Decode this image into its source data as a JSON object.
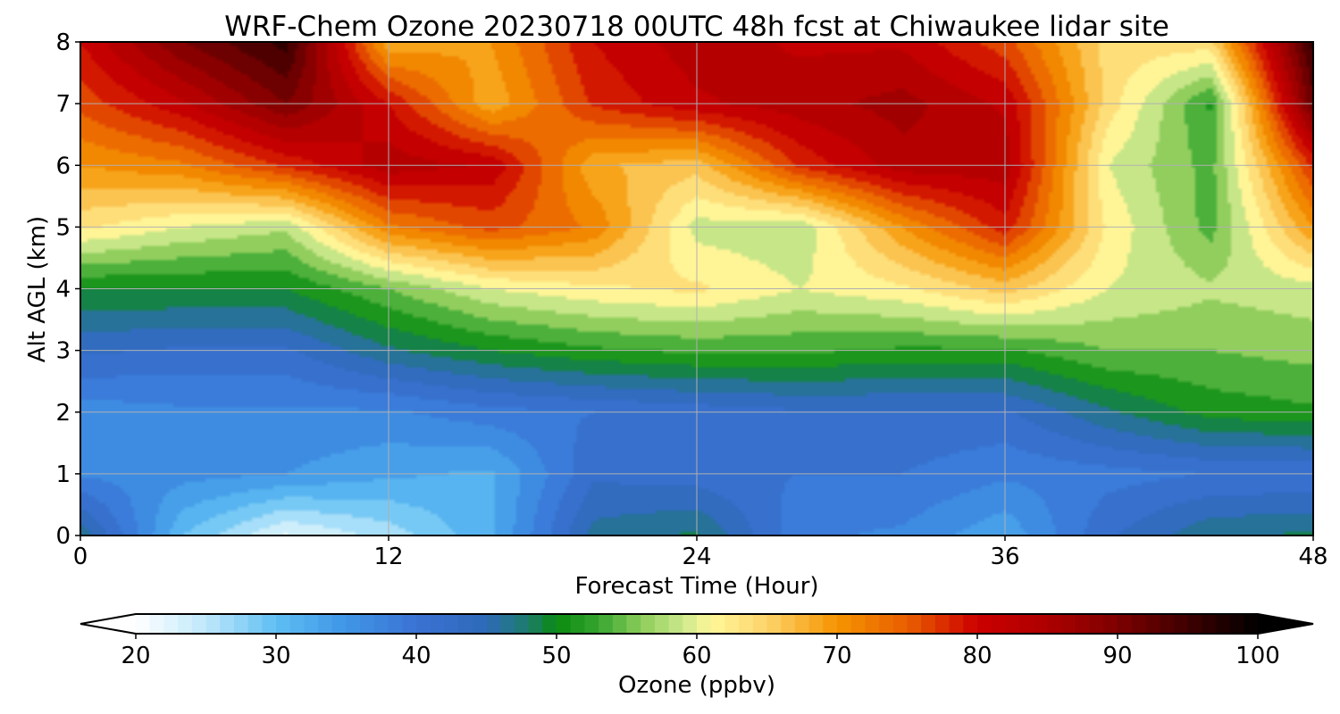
{
  "chart_data": {
    "type": "heatmap",
    "title": "WRF-Chem Ozone  20230718 00UTC 48h fcst at Chiwaukee lidar site",
    "xlabel": "Forecast Time (Hour)",
    "ylabel": "Alt AGL (km)",
    "xlim": [
      0,
      48
    ],
    "ylim": [
      0,
      8
    ],
    "xticks": [
      0,
      12,
      24,
      36,
      48
    ],
    "yticks": [
      0,
      1,
      2,
      3,
      4,
      5,
      6,
      7,
      8
    ],
    "grid": true,
    "colorbar": {
      "label": "Ozone  (ppbv)",
      "range": [
        20,
        100
      ],
      "ticks": [
        20,
        30,
        40,
        50,
        60,
        70,
        80,
        90,
        100
      ],
      "extend": "both",
      "orientation": "horizontal",
      "stops": [
        {
          "value": 20,
          "color": "#ffffff"
        },
        {
          "value": 25,
          "color": "#bfe8fb"
        },
        {
          "value": 30,
          "color": "#5fbef3"
        },
        {
          "value": 35,
          "color": "#3f95e6"
        },
        {
          "value": 40,
          "color": "#3a72d4"
        },
        {
          "value": 45,
          "color": "#2e6ab8"
        },
        {
          "value": 48,
          "color": "#1c7d6a"
        },
        {
          "value": 50,
          "color": "#0a8a10"
        },
        {
          "value": 53,
          "color": "#36a630"
        },
        {
          "value": 56,
          "color": "#8ccc5a"
        },
        {
          "value": 59,
          "color": "#cce88c"
        },
        {
          "value": 61,
          "color": "#fff79a"
        },
        {
          "value": 65,
          "color": "#fdd36a"
        },
        {
          "value": 70,
          "color": "#f59400"
        },
        {
          "value": 75,
          "color": "#e95e00"
        },
        {
          "value": 80,
          "color": "#cc0000"
        },
        {
          "value": 85,
          "color": "#ad0000"
        },
        {
          "value": 90,
          "color": "#7d0000"
        },
        {
          "value": 95,
          "color": "#3e0000"
        },
        {
          "value": 100,
          "color": "#000000"
        }
      ]
    },
    "times_h": [
      0,
      4,
      8,
      12,
      16,
      20,
      24,
      28,
      32,
      36,
      40,
      44,
      48
    ],
    "altitudes_km": [
      0,
      1,
      2,
      3,
      4,
      5,
      6,
      7,
      8
    ],
    "ozone_ppbv": [
      [
        47,
        30,
        22,
        26,
        32,
        46,
        48,
        38,
        37,
        33,
        42,
        47,
        48
      ],
      [
        37,
        36,
        35,
        33,
        32,
        42,
        41,
        40,
        40,
        38,
        39,
        40,
        40
      ],
      [
        36,
        37,
        37,
        37,
        39,
        40,
        41,
        42,
        42,
        42,
        47,
        51,
        52
      ],
      [
        43,
        42,
        42,
        47,
        50,
        52,
        53,
        53,
        52,
        52,
        55,
        55,
        56
      ],
      [
        50,
        50,
        50,
        55,
        60,
        62,
        63,
        60,
        62,
        66,
        60,
        58,
        59
      ],
      [
        63,
        60,
        58,
        72,
        76,
        72,
        59,
        58,
        70,
        79,
        62,
        54,
        70
      ],
      [
        70,
        72,
        78,
        84,
        82,
        68,
        66,
        78,
        84,
        84,
        60,
        54,
        78
      ],
      [
        76,
        82,
        90,
        80,
        68,
        78,
        82,
        84,
        86,
        82,
        64,
        52,
        92
      ],
      [
        80,
        90,
        96,
        68,
        70,
        80,
        84,
        82,
        82,
        76,
        64,
        64,
        96
      ]
    ]
  }
}
